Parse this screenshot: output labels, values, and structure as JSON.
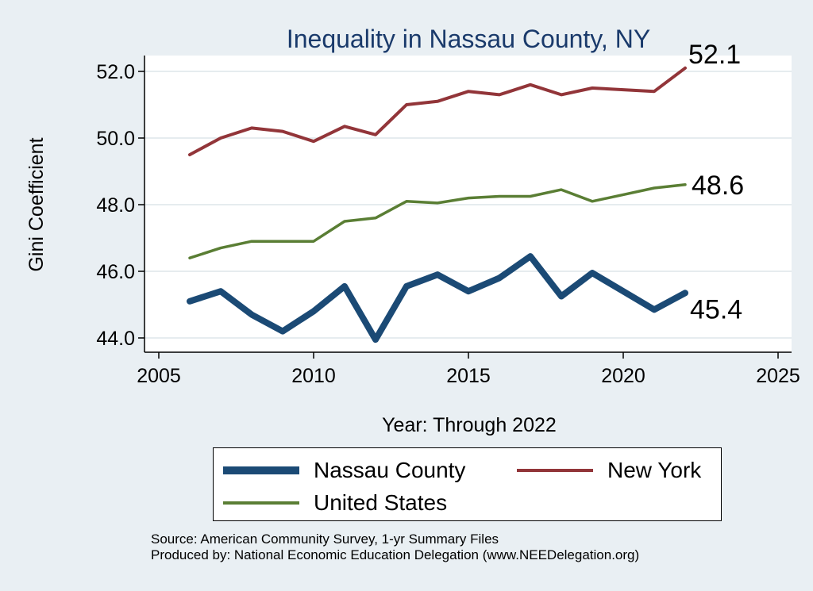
{
  "chart_data": {
    "type": "line",
    "title": "Inequality in Nassau County, NY",
    "xlabel": "Year: Through 2022",
    "ylabel": "Gini Coefficient",
    "xlim": [
      2005,
      2025
    ],
    "ylim": [
      44.0,
      52.0
    ],
    "xticks": [
      2005,
      2010,
      2015,
      2020,
      2025
    ],
    "yticks": [
      "44.0",
      "46.0",
      "48.0",
      "50.0",
      "52.0"
    ],
    "x": [
      2006,
      2007,
      2008,
      2009,
      2010,
      2011,
      2012,
      2013,
      2014,
      2015,
      2016,
      2017,
      2018,
      2019,
      2020,
      2021,
      2022
    ],
    "series": [
      {
        "name": "Nassau County",
        "color": "#1b4a75",
        "values": [
          45.1,
          45.4,
          44.7,
          44.2,
          44.8,
          45.55,
          43.95,
          45.55,
          45.9,
          45.4,
          45.8,
          46.45,
          45.25,
          45.95,
          45.4,
          44.85,
          45.35
        ],
        "end_label": "45.4"
      },
      {
        "name": "New York",
        "color": "#923539",
        "values": [
          49.5,
          50.0,
          50.3,
          50.2,
          49.9,
          50.35,
          50.1,
          51.0,
          51.1,
          51.4,
          51.3,
          51.6,
          51.3,
          51.5,
          51.45,
          51.4,
          52.1
        ],
        "end_label": "52.1"
      },
      {
        "name": "United States",
        "color": "#5a7e34",
        "values": [
          46.4,
          46.7,
          46.9,
          46.9,
          46.9,
          47.5,
          47.6,
          48.1,
          48.05,
          48.2,
          48.25,
          48.25,
          48.45,
          48.1,
          48.3,
          48.5,
          48.6
        ],
        "end_label": "48.6"
      }
    ],
    "legend": {
      "position": "bottom",
      "entries": [
        "Nassau County",
        "New York",
        "United States"
      ]
    }
  },
  "source_line1": "Source: American Community Survey, 1-yr Summary Files",
  "source_line2": "Produced by: National Economic Education Delegation (www.NEEDelegation.org)"
}
